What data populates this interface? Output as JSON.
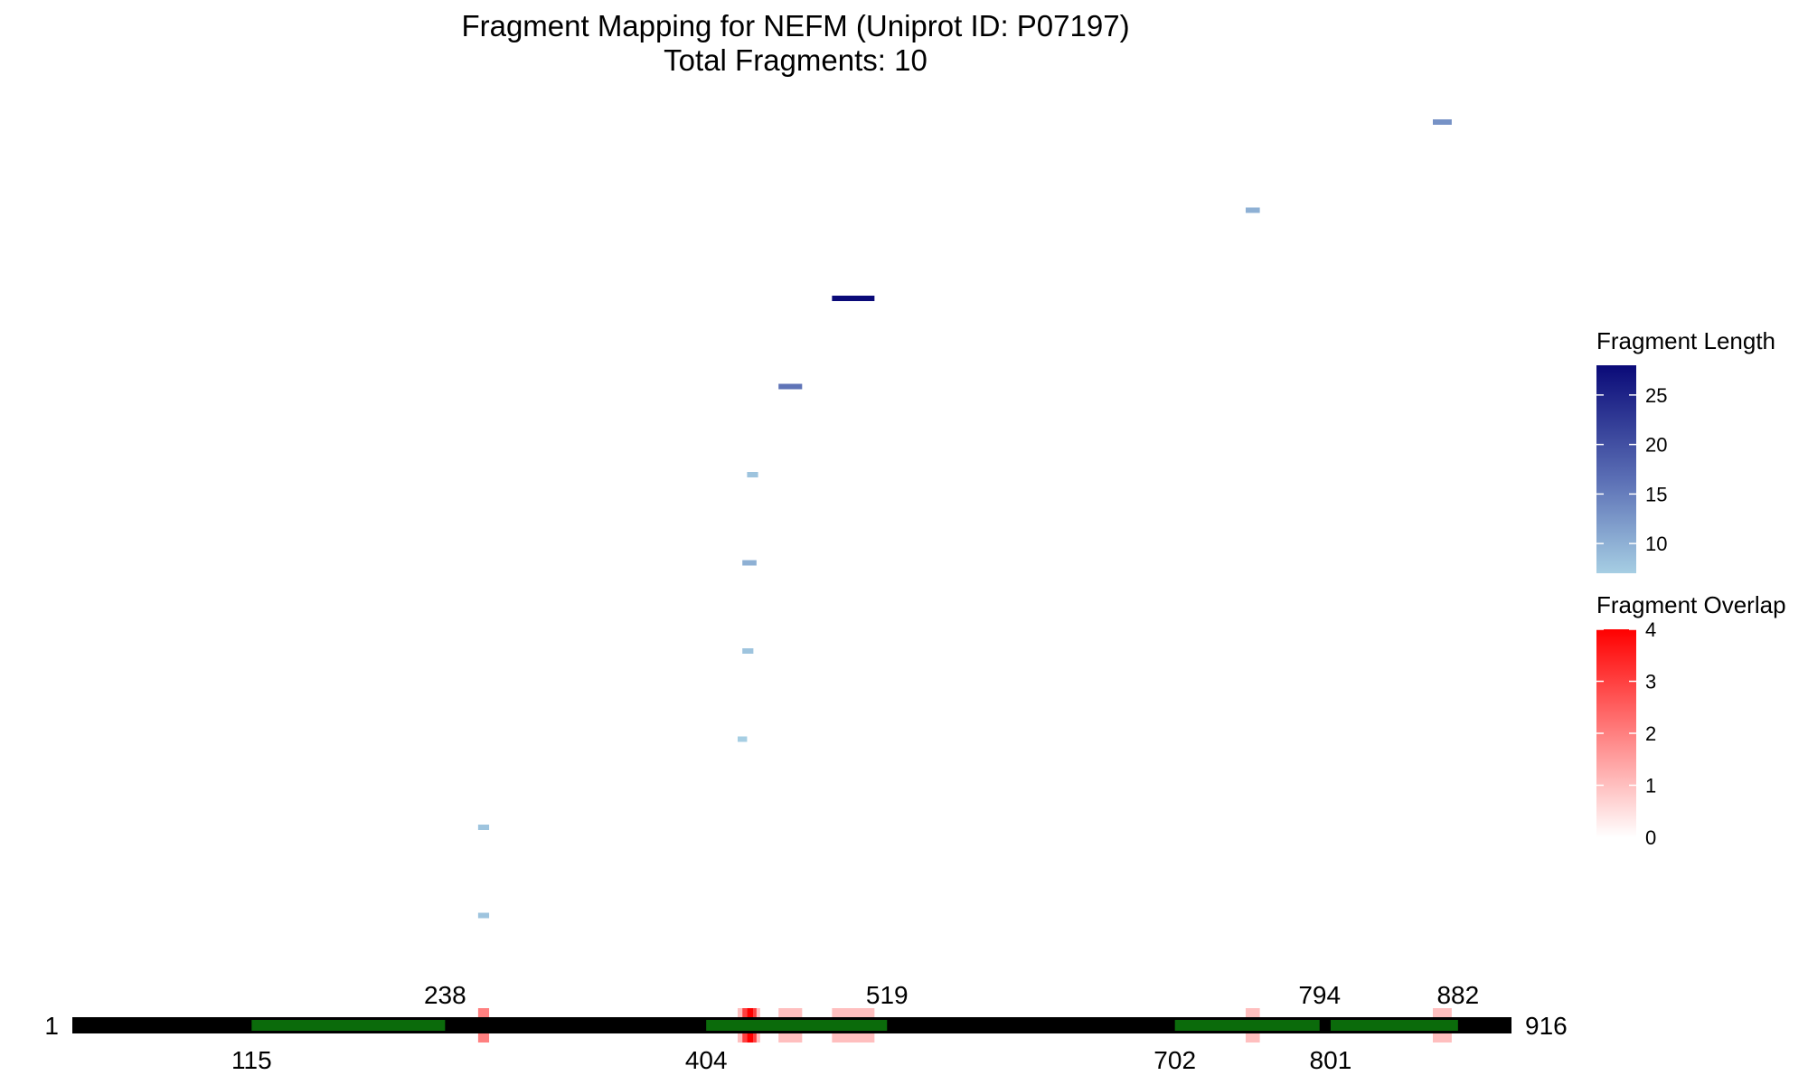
{
  "title": "Fragment Mapping for NEFM (Uniprot ID: P07197)",
  "subtitle": "Total Fragments: 10",
  "chart_data": {
    "type": "fragment-map",
    "protein": {
      "name": "NEFM",
      "uniprot": "P07197",
      "start": 1,
      "end": 916
    },
    "domains": [
      {
        "start": 115,
        "end": 238
      },
      {
        "start": 404,
        "end": 519
      },
      {
        "start": 702,
        "end": 794
      },
      {
        "start": 801,
        "end": 882
      }
    ],
    "domain_labels": [
      {
        "value": "115",
        "pos": 115,
        "side": "below"
      },
      {
        "value": "238",
        "pos": 238,
        "side": "above"
      },
      {
        "value": "404",
        "pos": 404,
        "side": "below"
      },
      {
        "value": "519",
        "pos": 519,
        "side": "above"
      },
      {
        "value": "702",
        "pos": 702,
        "side": "below"
      },
      {
        "value": "794",
        "pos": 794,
        "side": "above"
      },
      {
        "value": "801",
        "pos": 801,
        "side": "below"
      },
      {
        "value": "882",
        "pos": 882,
        "side": "above"
      }
    ],
    "fragments": [
      {
        "row": 1,
        "start": 259,
        "end": 266,
        "length": 8
      },
      {
        "row": 2,
        "start": 259,
        "end": 266,
        "length": 8
      },
      {
        "row": 3,
        "start": 424,
        "end": 430,
        "length": 7
      },
      {
        "row": 4,
        "start": 427,
        "end": 434,
        "length": 8
      },
      {
        "row": 5,
        "start": 427,
        "end": 436,
        "length": 10
      },
      {
        "row": 6,
        "start": 430,
        "end": 437,
        "length": 8
      },
      {
        "row": 7,
        "start": 450,
        "end": 465,
        "length": 16
      },
      {
        "row": 8,
        "start": 484,
        "end": 511,
        "length": 28
      },
      {
        "row": 9,
        "start": 747,
        "end": 756,
        "length": 10
      },
      {
        "row": 10,
        "start": 866,
        "end": 878,
        "length": 13
      }
    ],
    "overlap_regions": [
      {
        "start": 259,
        "end": 266,
        "value": 2
      },
      {
        "start": 424,
        "end": 427,
        "value": 1
      },
      {
        "start": 427,
        "end": 430,
        "value": 3
      },
      {
        "start": 430,
        "end": 434,
        "value": 4
      },
      {
        "start": 434,
        "end": 436,
        "value": 3
      },
      {
        "start": 436,
        "end": 437,
        "value": 1
      },
      {
        "start": 450,
        "end": 465,
        "value": 1
      },
      {
        "start": 484,
        "end": 511,
        "value": 1
      },
      {
        "start": 747,
        "end": 756,
        "value": 1
      },
      {
        "start": 866,
        "end": 878,
        "value": 1
      }
    ],
    "legend_length": {
      "title": "Fragment Length",
      "ticks": [
        10,
        15,
        20,
        25
      ],
      "range": [
        7,
        28
      ],
      "color_low": "#a6cee3",
      "color_mid": "#5b6fb5",
      "color_high": "#0a0a78"
    },
    "legend_overlap": {
      "title": "Fragment Overlap",
      "ticks": [
        0,
        1,
        2,
        3,
        4
      ],
      "range": [
        0,
        4
      ],
      "color_low": "#ffffff",
      "color_high": "#ff0000"
    },
    "colors": {
      "backbone": "#000000",
      "domain": "#0b6b0b"
    }
  }
}
